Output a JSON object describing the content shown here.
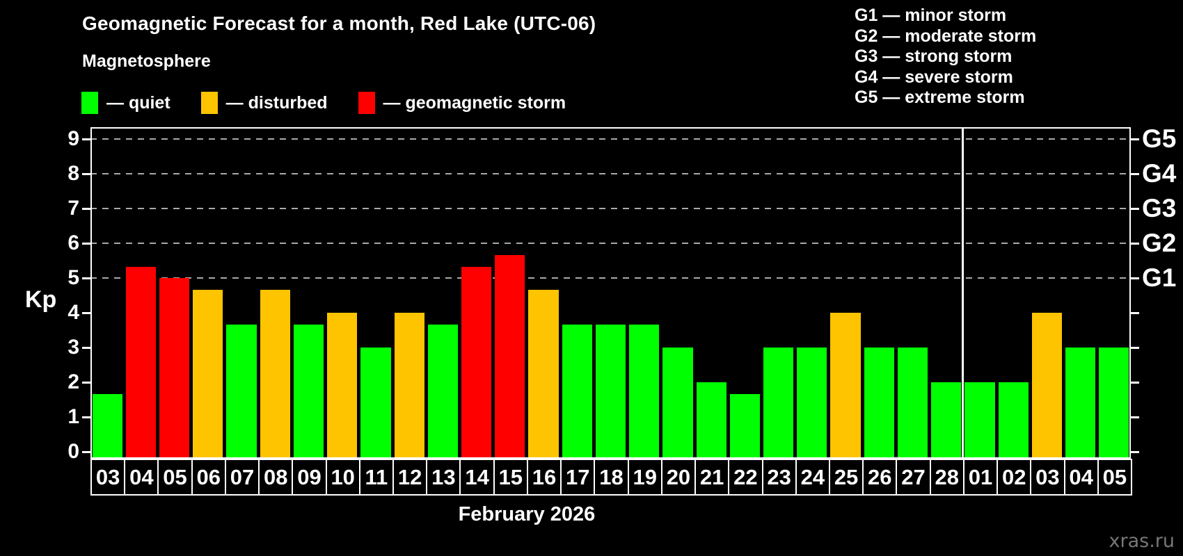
{
  "header": {
    "title": "Geomagnetic Forecast for a month, Red Lake (UTC-06)",
    "subtitle": "Magnetosphere"
  },
  "legend": {
    "items": [
      {
        "label": "— quiet",
        "status": "quiet",
        "color": "#00ff00"
      },
      {
        "label": "— disturbed",
        "status": "disturbed",
        "color": "#ffc400"
      },
      {
        "label": "— geomagnetic storm",
        "status": "storm",
        "color": "#ff0000"
      }
    ]
  },
  "g_scale_legend": {
    "lines": [
      "G1 — minor storm",
      "G2 — moderate storm",
      "G3 — strong storm",
      "G4 — severe storm",
      "G5 — extreme storm"
    ]
  },
  "watermark": "xras.ru",
  "chart_data": {
    "type": "bar",
    "title": "Geomagnetic Forecast for a month, Red Lake (UTC-06)",
    "ylabel": "Kp",
    "xlabel": "February 2026",
    "month_label": "February 2026",
    "ylim": [
      0,
      9.3
    ],
    "y_ticks": [
      0,
      1,
      2,
      3,
      4,
      5,
      6,
      7,
      8,
      9
    ],
    "gridline_values": [
      5,
      6,
      7,
      8,
      9
    ],
    "right_axis_labels": [
      {
        "label": "G1",
        "value": 5
      },
      {
        "label": "G2",
        "value": 6
      },
      {
        "label": "G3",
        "value": 7
      },
      {
        "label": "G4",
        "value": 8
      },
      {
        "label": "G5",
        "value": 9
      }
    ],
    "grid": "dashed, levels G1–G5 only",
    "legend_position": "top",
    "separator_after_index": 25,
    "categories": [
      "03",
      "04",
      "05",
      "06",
      "07",
      "08",
      "09",
      "10",
      "11",
      "12",
      "13",
      "14",
      "15",
      "16",
      "17",
      "18",
      "19",
      "20",
      "21",
      "22",
      "23",
      "24",
      "25",
      "26",
      "27",
      "28",
      "01",
      "02",
      "03",
      "04",
      "05"
    ],
    "values": [
      1.67,
      5.33,
      5.0,
      4.67,
      3.67,
      4.67,
      3.67,
      4.0,
      3.0,
      4.0,
      3.67,
      5.33,
      5.67,
      4.67,
      3.67,
      3.67,
      3.67,
      3.0,
      2.0,
      1.67,
      3.0,
      3.0,
      4.0,
      3.0,
      3.0,
      2.0,
      2.0,
      2.0,
      4.0,
      3.0,
      3.0
    ],
    "statuses": [
      "quiet",
      "storm",
      "storm",
      "disturbed",
      "quiet",
      "disturbed",
      "quiet",
      "disturbed",
      "quiet",
      "disturbed",
      "quiet",
      "storm",
      "storm",
      "disturbed",
      "quiet",
      "quiet",
      "quiet",
      "quiet",
      "quiet",
      "quiet",
      "quiet",
      "quiet",
      "disturbed",
      "quiet",
      "quiet",
      "quiet",
      "quiet",
      "quiet",
      "disturbed",
      "quiet",
      "quiet"
    ],
    "status_colors": {
      "quiet": "#00ff00",
      "disturbed": "#ffc400",
      "storm": "#ff0000"
    }
  }
}
